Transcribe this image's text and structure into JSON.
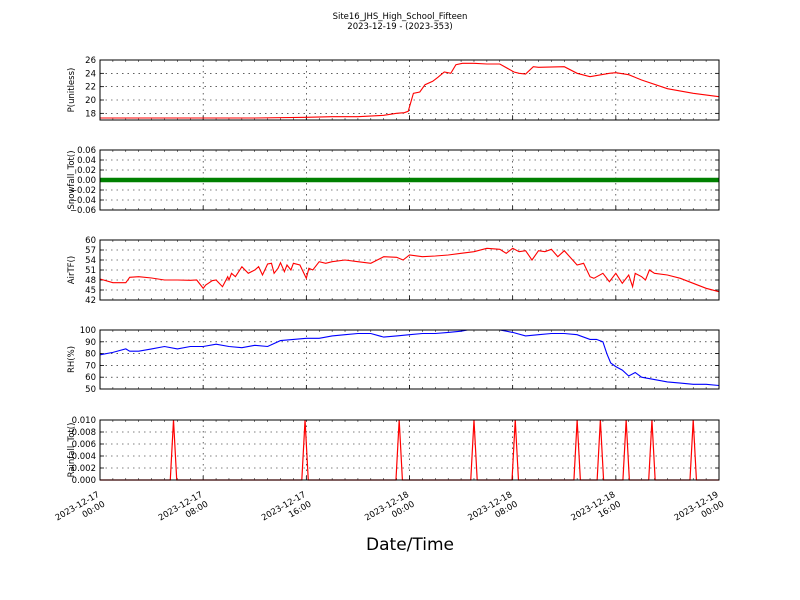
{
  "figure": {
    "title_line1": "Site16_JHS_High_School_Fifteen",
    "title_line2": "2023-12-19 - (2023-353)",
    "xlabel": "Date/Time",
    "x_ticks": [
      "2023-12-17 00:00",
      "2023-12-17 08:00",
      "2023-12-17 16:00",
      "2023-12-18 00:00",
      "2023-12-18 08:00",
      "2023-12-18 16:00",
      "2023-12-19 00:00"
    ],
    "x_tick_lines": [
      [
        "2023-12-17",
        "00:00"
      ],
      [
        "2023-12-17",
        "08:00"
      ],
      [
        "2023-12-17",
        "16:00"
      ],
      [
        "2023-12-18",
        "00:00"
      ],
      [
        "2023-12-18",
        "08:00"
      ],
      [
        "2023-12-18",
        "16:00"
      ],
      [
        "2023-12-19",
        "00:00"
      ]
    ]
  },
  "chart_data": [
    {
      "type": "line",
      "ylabel": "P(unitless)",
      "color": "#ff0000",
      "ylim": [
        17,
        26
      ],
      "yticks": [
        "18",
        "20",
        "22",
        "24",
        "26"
      ],
      "x_hours": [
        0,
        6,
        12,
        16,
        18,
        20,
        22,
        23,
        23.6,
        23.9,
        24.3,
        24.8,
        25.2,
        25.8,
        26.2,
        26.7,
        27.2,
        27.6,
        28.1,
        29,
        30,
        31,
        32.1,
        32.5,
        33,
        33.6,
        34,
        36,
        37,
        38,
        39.5,
        40,
        41,
        42,
        44,
        46,
        48
      ],
      "values": [
        17.3,
        17.3,
        17.3,
        17.4,
        17.5,
        17.5,
        17.7,
        18.0,
        18.1,
        18.3,
        21.0,
        21.2,
        22.3,
        22.8,
        23.4,
        24.2,
        24.0,
        25.3,
        25.5,
        25.5,
        25.4,
        25.4,
        24.2,
        24.0,
        23.9,
        25.0,
        24.9,
        25.0,
        24.0,
        23.5,
        24.0,
        24.1,
        23.8,
        23.0,
        21.7,
        21.0,
        20.5
      ]
    },
    {
      "type": "line",
      "ylabel": "Snowfall_Tot()",
      "color": "#008000",
      "ylim": [
        -0.06,
        0.06
      ],
      "yticks": [
        "0.06",
        "0.04",
        "0.02",
        "0.00",
        "−0.02",
        "−0.04",
        "−0.06"
      ],
      "x_hours": [
        0,
        48
      ],
      "values": [
        0,
        0
      ]
    },
    {
      "type": "line",
      "ylabel": "AirTF()",
      "color": "#ff0000",
      "ylim": [
        42,
        60
      ],
      "yticks": [
        "60",
        "57",
        "54",
        "51",
        "48",
        "45",
        "42"
      ],
      "x_hours": [
        0,
        1,
        2,
        2.3,
        3,
        4,
        5,
        6,
        7,
        7.5,
        8,
        8.2,
        8.4,
        8.7,
        9,
        9.5,
        9.9,
        10,
        10.2,
        10.5,
        11,
        11.5,
        12,
        12.3,
        12.6,
        13,
        13.3,
        13.5,
        13.8,
        14,
        14.3,
        14.5,
        14.8,
        15,
        15.5,
        16,
        16.2,
        16.5,
        17,
        17.5,
        18,
        19,
        20,
        21,
        22,
        23,
        23.5,
        24,
        25,
        26,
        27,
        28,
        29,
        30,
        31,
        31.5,
        32,
        32.5,
        33,
        33.5,
        34,
        34.5,
        35,
        35.5,
        36,
        37,
        37.5,
        38,
        38.3,
        39,
        39.5,
        40,
        40.5,
        41,
        41.3,
        41.5,
        42,
        42.3,
        42.6,
        43,
        44,
        45,
        46,
        47,
        48
      ],
      "values": [
        48.3,
        47.2,
        47.2,
        48.8,
        49.0,
        48.6,
        48.0,
        48.0,
        47.9,
        48.0,
        45.5,
        46.5,
        47.0,
        47.8,
        48.0,
        46.0,
        49.0,
        48.0,
        50.0,
        49.0,
        52.0,
        50.0,
        51.0,
        52.0,
        49.5,
        52.8,
        53.0,
        50.0,
        51.5,
        53.2,
        50.5,
        52.5,
        51.0,
        53.0,
        52.5,
        48.5,
        51.5,
        51.0,
        53.5,
        53.0,
        53.5,
        54.0,
        53.5,
        53.0,
        55.0,
        54.8,
        54.0,
        55.5,
        55.0,
        55.2,
        55.5,
        56.0,
        56.5,
        57.5,
        57.2,
        56.0,
        57.5,
        56.5,
        56.8,
        54.0,
        56.8,
        56.5,
        57.2,
        55.0,
        56.8,
        52.5,
        53.0,
        49.0,
        48.5,
        50.0,
        47.5,
        50.0,
        47.0,
        49.5,
        46.0,
        50.0,
        49.0,
        48.0,
        51.0,
        50.0,
        49.5,
        48.5,
        47.0,
        45.5,
        44.5
      ]
    },
    {
      "type": "line",
      "ylabel": "RH(%)",
      "color": "#0000ff",
      "ylim": [
        50,
        100
      ],
      "yticks": [
        "100",
        "90",
        "80",
        "70",
        "60",
        "50"
      ],
      "x_hours": [
        0,
        1,
        2,
        2.3,
        3,
        4,
        5,
        6,
        7,
        8,
        9,
        10,
        11,
        12,
        13,
        14,
        15,
        16,
        17,
        18,
        19,
        20,
        21,
        22,
        23,
        24,
        25,
        26,
        27,
        28,
        28.5,
        29,
        30,
        31,
        32,
        33,
        34,
        35,
        36,
        37,
        38,
        38.5,
        39,
        39.3,
        39.6,
        40,
        40.5,
        41,
        41.5,
        42,
        43,
        44,
        45,
        46,
        47,
        48
      ],
      "values": [
        79,
        81,
        84,
        82,
        82,
        84,
        86,
        84,
        86,
        86,
        88,
        86,
        85,
        87,
        86,
        91,
        92,
        93,
        93,
        95,
        96,
        97,
        97,
        94,
        95,
        96,
        97,
        97,
        98,
        99,
        100,
        100,
        100,
        100,
        98,
        95,
        96,
        97,
        97,
        96,
        92,
        92,
        90,
        80,
        72,
        69,
        66,
        61,
        64,
        60,
        58,
        56,
        55,
        54,
        54,
        53
      ]
    },
    {
      "type": "line",
      "ylabel": "Rainfall_Tot()",
      "color": "#ff0000",
      "ylim": [
        0,
        0.01
      ],
      "yticks": [
        "0.010",
        "0.008",
        "0.006",
        "0.004",
        "0.002",
        "0.000"
      ],
      "x_hours": [
        5.7,
        15.9,
        23.2,
        29.0,
        32.2,
        37.0,
        38.8,
        40.8,
        42.8,
        46.0
      ],
      "values": [
        0.01,
        0.01,
        0.01,
        0.01,
        0.01,
        0.01,
        0.01,
        0.01,
        0.01,
        0.01
      ]
    }
  ]
}
